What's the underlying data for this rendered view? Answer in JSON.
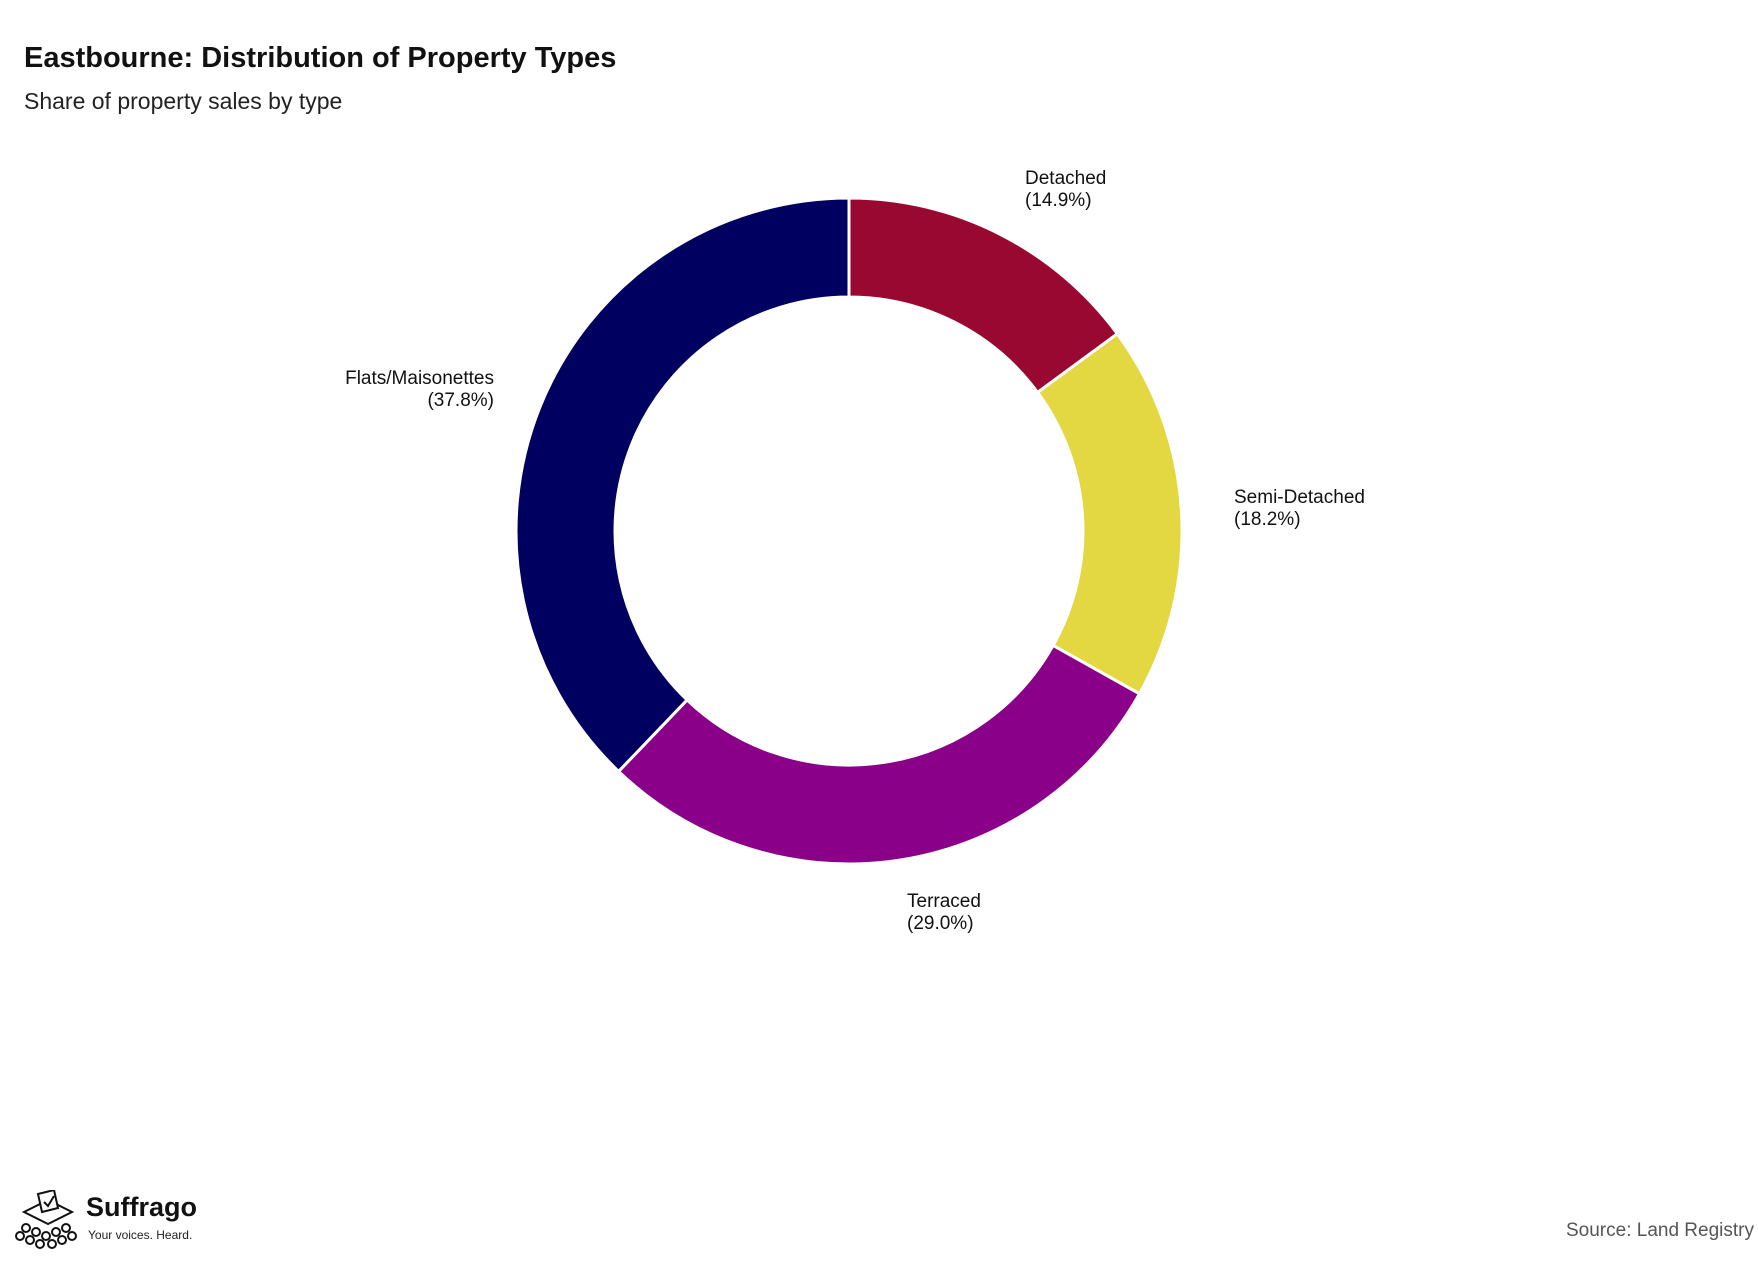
{
  "header": {
    "title": "Eastbourne: Distribution of Property Types",
    "subtitle": "Share of property sales by type"
  },
  "chart_data": {
    "type": "pie",
    "variant": "donut",
    "title": "Eastbourne: Distribution of Property Types",
    "subtitle": "Share of property sales by type",
    "slices": [
      {
        "label": "Detached",
        "pct_label": "(14.9%)",
        "value": 14.9,
        "color": "#990830"
      },
      {
        "label": "Semi-Detached",
        "pct_label": "(18.2%)",
        "value": 18.2,
        "color": "#E3D742"
      },
      {
        "label": "Terraced",
        "pct_label": "(29.0%)",
        "value": 29.0,
        "color": "#8A0088"
      },
      {
        "label": "Flats/Maisonettes",
        "pct_label": "(37.8%)",
        "value": 37.8,
        "color": "#000060"
      }
    ],
    "start_angle": "12 o'clock",
    "direction": "clockwise",
    "legend": "none"
  },
  "footer": {
    "brand": "Suffrago",
    "tagline": "Your voices. Heard.",
    "source": "Source: Land Registry"
  },
  "icons": {
    "brand_icon": "ballot-box-crowd-icon"
  }
}
